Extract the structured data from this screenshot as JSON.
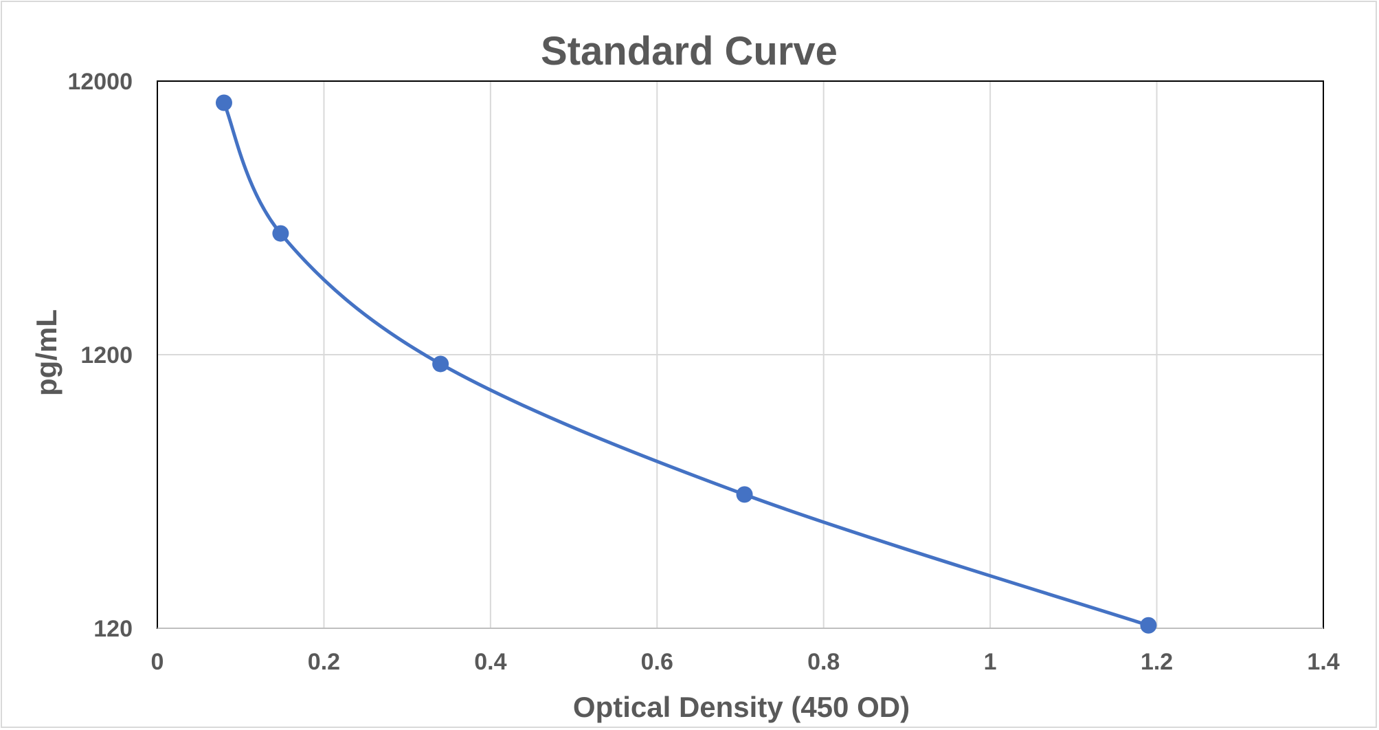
{
  "chart_data": {
    "type": "scatter",
    "title": "Standard Curve",
    "xlabel": "Optical Density (450 OD)",
    "ylabel": "pg/mL",
    "xlim": [
      0,
      1.4
    ],
    "ylim": [
      120,
      12000
    ],
    "yscale": "log",
    "grid": true,
    "legend": "none",
    "x_ticks": [
      "0",
      "0.2",
      "0.4",
      "0.6",
      "0.8",
      "1",
      "1.2",
      "1.4"
    ],
    "y_ticks": [
      "120",
      "1200",
      "12000"
    ],
    "smoothed_line": true,
    "series": [
      {
        "color": "#4472c4",
        "x": [
          0.08,
          0.148,
          0.34,
          0.705,
          1.19
        ],
        "y": [
          10000,
          3330,
          1110,
          370,
          123
        ]
      }
    ]
  }
}
